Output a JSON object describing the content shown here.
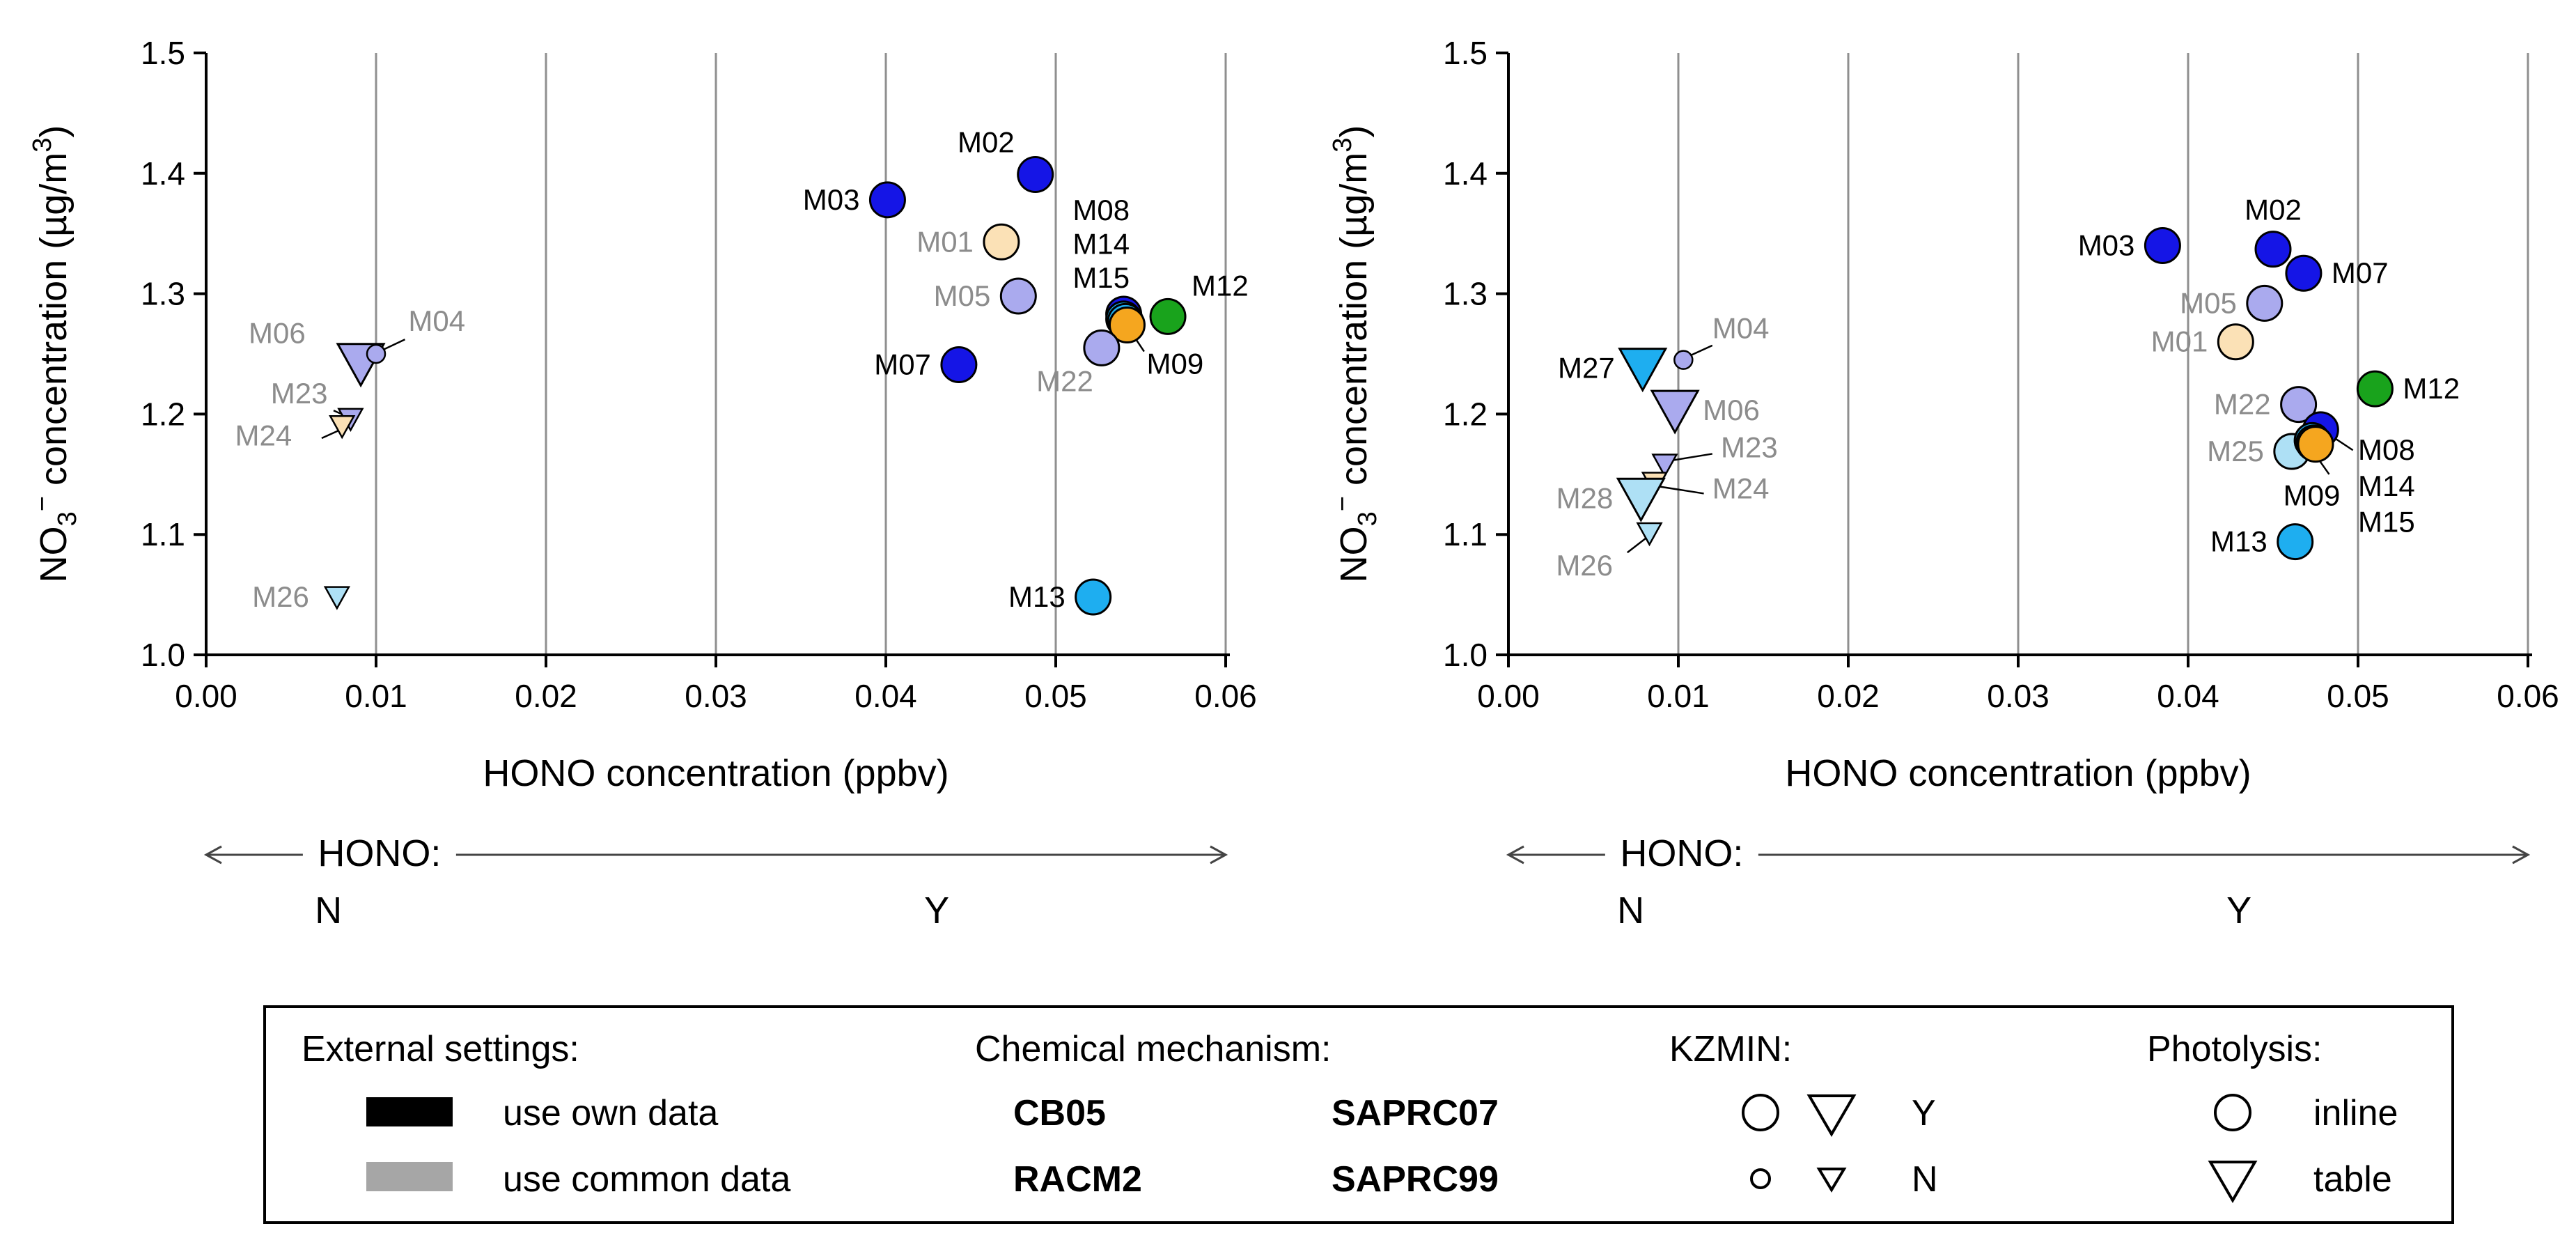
{
  "colors": {
    "CB05": "#f5a61f",
    "SAPRC07": "#1515e6",
    "RACM2": "#19a31c",
    "SAPRC99": "#1eaef0",
    "own": "#000000",
    "common": "#a6a6a6",
    "light_SAPRC07": "#aaaaee",
    "light_CB05": "#fbe1b6",
    "light_SAPRC99": "#aee0f5",
    "common_label": "#8c8c8c"
  },
  "chart_data": [
    {
      "type": "scatter",
      "name": "left-panel",
      "title": "",
      "xlabel": "HONO concentration (ppbv)",
      "ylabel_parts": [
        "NO",
        "3",
        "−",
        " concentration (µg/m",
        "3",
        ")"
      ],
      "xlim": [
        0.0,
        0.06
      ],
      "ylim": [
        1.0,
        1.5
      ],
      "xticks": [
        "0.00",
        "0.01",
        "0.02",
        "0.03",
        "0.04",
        "0.05",
        "0.06"
      ],
      "yticks": [
        "1.0",
        "1.1",
        "1.2",
        "1.3",
        "1.4",
        "1.5"
      ],
      "grid": "vertical",
      "hono_axis": {
        "label": "HONO:",
        "n": "N",
        "y": "Y"
      },
      "points": [
        {
          "label": "M03",
          "x": 0.0401,
          "y": 1.378,
          "mech": "SAPRC07",
          "data": "own",
          "kz": "Y",
          "photo": "inline",
          "lpos": "left"
        },
        {
          "label": "M02",
          "x": 0.0488,
          "y": 1.399,
          "mech": "SAPRC07",
          "data": "own",
          "kz": "Y",
          "photo": "inline",
          "lpos": "upleft"
        },
        {
          "label": "M01",
          "x": 0.0468,
          "y": 1.343,
          "mech": "CB05",
          "data": "common",
          "kz": "Y",
          "photo": "inline",
          "lpos": "left"
        },
        {
          "label": "M05",
          "x": 0.0478,
          "y": 1.298,
          "mech": "SAPRC07",
          "data": "common",
          "kz": "Y",
          "photo": "inline",
          "lpos": "left"
        },
        {
          "label": "M07",
          "x": 0.0443,
          "y": 1.241,
          "mech": "SAPRC07",
          "data": "own",
          "kz": "Y",
          "photo": "inline",
          "lpos": "left"
        },
        {
          "label": "M08",
          "x": 0.054,
          "y": 1.283,
          "mech": "SAPRC07",
          "data": "own",
          "kz": "Y",
          "photo": "inline",
          "lpos": "none"
        },
        {
          "label": "M14",
          "x": 0.054,
          "y": 1.279,
          "mech": "SAPRC99",
          "data": "own",
          "kz": "Y",
          "photo": "inline",
          "lpos": "none"
        },
        {
          "label": "M15",
          "x": 0.0541,
          "y": 1.277,
          "mech": "SAPRC99",
          "data": "own",
          "kz": "Y",
          "photo": "inline",
          "lpos": "none"
        },
        {
          "label": "M09",
          "x": 0.0542,
          "y": 1.274,
          "mech": "CB05",
          "data": "own",
          "kz": "Y",
          "photo": "inline",
          "lpos": "lowright"
        },
        {
          "label": "M12",
          "x": 0.0566,
          "y": 1.281,
          "mech": "RACM2",
          "data": "own",
          "kz": "Y",
          "photo": "inline",
          "lpos": "upright"
        },
        {
          "label": "M22",
          "x": 0.0527,
          "y": 1.255,
          "mech": "SAPRC07",
          "data": "common",
          "kz": "Y",
          "photo": "inline",
          "lpos": "lowleft"
        },
        {
          "label": "M13",
          "x": 0.0522,
          "y": 1.048,
          "mech": "SAPRC99",
          "data": "own",
          "kz": "Y",
          "photo": "inline",
          "lpos": "left"
        },
        {
          "label": "M06",
          "x": 0.0091,
          "y": 1.242,
          "mech": "SAPRC07",
          "data": "common",
          "kz": "Y",
          "photo": "table",
          "lpos": "none"
        },
        {
          "label": "M04",
          "x": 0.01,
          "y": 1.25,
          "mech": "SAPRC07",
          "data": "common",
          "kz": "N",
          "photo": "inline",
          "lpos": "none"
        },
        {
          "label": "M23",
          "x": 0.0085,
          "y": 1.196,
          "mech": "SAPRC07",
          "data": "common",
          "kz": "N",
          "photo": "table",
          "lpos": "none"
        },
        {
          "label": "M24",
          "x": 0.008,
          "y": 1.19,
          "mech": "CB05",
          "data": "common",
          "kz": "N",
          "photo": "table",
          "lpos": "none"
        },
        {
          "label": "M26",
          "x": 0.0077,
          "y": 1.048,
          "mech": "SAPRC99",
          "data": "common",
          "kz": "N",
          "photo": "table",
          "lpos": "left"
        }
      ],
      "annotations": [
        {
          "text": "M08",
          "x": 0.051,
          "y": 1.361,
          "color": "own"
        },
        {
          "text": "M14",
          "x": 0.051,
          "y": 1.333,
          "color": "own"
        },
        {
          "text": "M15",
          "x": 0.051,
          "y": 1.305,
          "color": "own"
        },
        {
          "text": "M06",
          "x": 0.0025,
          "y": 1.259,
          "color": "common"
        },
        {
          "text": "M04",
          "x": 0.0119,
          "y": 1.269,
          "color": "common"
        },
        {
          "text": "M23",
          "x": 0.0038,
          "y": 1.209,
          "color": "common"
        },
        {
          "text": "M24",
          "x": 0.0017,
          "y": 1.174,
          "color": "common"
        }
      ],
      "leaders": [
        [
          0.0098,
          1.252,
          0.0077,
          1.258
        ],
        [
          0.0102,
          1.252,
          0.0117,
          1.262
        ],
        [
          0.0083,
          1.198,
          0.0075,
          1.203
        ],
        [
          0.0079,
          1.187,
          0.0068,
          1.18
        ],
        [
          0.0543,
          1.271,
          0.0552,
          1.252
        ]
      ]
    },
    {
      "type": "scatter",
      "name": "right-panel",
      "title": "",
      "xlabel": "HONO concentration (ppbv)",
      "ylabel_parts": [
        "NO",
        "3",
        "−",
        " concentration (µg/m",
        "3",
        ")"
      ],
      "xlim": [
        0.0,
        0.06
      ],
      "ylim": [
        1.0,
        1.5
      ],
      "xticks": [
        "0.00",
        "0.01",
        "0.02",
        "0.03",
        "0.04",
        "0.05",
        "0.06"
      ],
      "yticks": [
        "1.0",
        "1.1",
        "1.2",
        "1.3",
        "1.4",
        "1.5"
      ],
      "grid": "vertical",
      "hono_axis": {
        "label": "HONO:",
        "n": "N",
        "y": "Y"
      },
      "points": [
        {
          "label": "M03",
          "x": 0.0385,
          "y": 1.34,
          "mech": "SAPRC07",
          "data": "own",
          "kz": "Y",
          "photo": "inline",
          "lpos": "left"
        },
        {
          "label": "M02",
          "x": 0.045,
          "y": 1.337,
          "mech": "SAPRC07",
          "data": "own",
          "kz": "Y",
          "photo": "inline",
          "lpos": "up"
        },
        {
          "label": "M07",
          "x": 0.0468,
          "y": 1.317,
          "mech": "SAPRC07",
          "data": "own",
          "kz": "Y",
          "photo": "inline",
          "lpos": "right"
        },
        {
          "label": "M05",
          "x": 0.0445,
          "y": 1.292,
          "mech": "SAPRC07",
          "data": "common",
          "kz": "Y",
          "photo": "inline",
          "lpos": "left"
        },
        {
          "label": "M01",
          "x": 0.0428,
          "y": 1.26,
          "mech": "CB05",
          "data": "common",
          "kz": "Y",
          "photo": "inline",
          "lpos": "left"
        },
        {
          "label": "M12",
          "x": 0.051,
          "y": 1.221,
          "mech": "RACM2",
          "data": "own",
          "kz": "Y",
          "photo": "inline",
          "lpos": "right"
        },
        {
          "label": "M22",
          "x": 0.0465,
          "y": 1.208,
          "mech": "SAPRC07",
          "data": "common",
          "kz": "Y",
          "photo": "inline",
          "lpos": "left"
        },
        {
          "label": "M08",
          "x": 0.0478,
          "y": 1.187,
          "mech": "SAPRC07",
          "data": "own",
          "kz": "Y",
          "photo": "inline",
          "lpos": "none"
        },
        {
          "label": "M25",
          "x": 0.0461,
          "y": 1.169,
          "mech": "SAPRC99",
          "data": "common",
          "kz": "Y",
          "photo": "inline",
          "lpos": "left"
        },
        {
          "label": "M14",
          "x": 0.0473,
          "y": 1.178,
          "mech": "SAPRC99",
          "data": "own",
          "kz": "Y",
          "photo": "inline",
          "lpos": "none"
        },
        {
          "label": "M15",
          "x": 0.0474,
          "y": 1.176,
          "mech": "SAPRC99",
          "data": "own",
          "kz": "Y",
          "photo": "inline",
          "lpos": "none"
        },
        {
          "label": "M09",
          "x": 0.0475,
          "y": 1.175,
          "mech": "CB05",
          "data": "own",
          "kz": "Y",
          "photo": "inline",
          "lpos": "none"
        },
        {
          "label": "M13",
          "x": 0.0463,
          "y": 1.094,
          "mech": "SAPRC99",
          "data": "own",
          "kz": "Y",
          "photo": "inline",
          "lpos": "left"
        },
        {
          "label": "M27",
          "x": 0.0079,
          "y": 1.238,
          "mech": "SAPRC99",
          "data": "own",
          "kz": "Y",
          "photo": "table",
          "lpos": "left"
        },
        {
          "label": "M04",
          "x": 0.0103,
          "y": 1.245,
          "mech": "SAPRC07",
          "data": "common",
          "kz": "N",
          "photo": "inline",
          "lpos": "none"
        },
        {
          "label": "M06",
          "x": 0.0098,
          "y": 1.203,
          "mech": "SAPRC07",
          "data": "common",
          "kz": "Y",
          "photo": "table",
          "lpos": "right"
        },
        {
          "label": "M23",
          "x": 0.0092,
          "y": 1.158,
          "mech": "SAPRC07",
          "data": "common",
          "kz": "N",
          "photo": "table",
          "lpos": "none"
        },
        {
          "label": "M24",
          "x": 0.0086,
          "y": 1.143,
          "mech": "CB05",
          "data": "common",
          "kz": "N",
          "photo": "table",
          "lpos": "none"
        },
        {
          "label": "M28",
          "x": 0.0078,
          "y": 1.13,
          "mech": "SAPRC99",
          "data": "common",
          "kz": "Y",
          "photo": "table",
          "lpos": "left"
        },
        {
          "label": "M26",
          "x": 0.0083,
          "y": 1.101,
          "mech": "SAPRC99",
          "data": "common",
          "kz": "N",
          "photo": "table",
          "lpos": "none"
        }
      ],
      "annotations": [
        {
          "text": "M04",
          "x": 0.012,
          "y": 1.263,
          "color": "common"
        },
        {
          "text": "M23",
          "x": 0.0125,
          "y": 1.164,
          "color": "common"
        },
        {
          "text": "M24",
          "x": 0.012,
          "y": 1.13,
          "color": "common"
        },
        {
          "text": "M26",
          "x": 0.0028,
          "y": 1.066,
          "color": "common"
        },
        {
          "text": "M08",
          "x": 0.05,
          "y": 1.162,
          "color": "own"
        },
        {
          "text": "M14",
          "x": 0.05,
          "y": 1.132,
          "color": "own"
        },
        {
          "text": "M15",
          "x": 0.05,
          "y": 1.102,
          "color": "own"
        },
        {
          "text": "M09",
          "x": 0.0456,
          "y": 1.124,
          "color": "own"
        }
      ],
      "leaders": [
        [
          0.0106,
          1.248,
          0.012,
          1.257
        ],
        [
          0.0094,
          1.161,
          0.012,
          1.167
        ],
        [
          0.0088,
          1.14,
          0.0115,
          1.134
        ],
        [
          0.0081,
          1.097,
          0.007,
          1.085
        ],
        [
          0.0482,
          1.184,
          0.0497,
          1.17
        ],
        [
          0.0473,
          1.17,
          0.0483,
          1.15
        ]
      ]
    }
  ],
  "legend": {
    "external_title": "External settings:",
    "own_label": "use own data",
    "common_label": "use common data",
    "mech_title": "Chemical mechanism:",
    "cb05": "CB05",
    "saprc07": "SAPRC07",
    "racm2": "RACM2",
    "saprc99": "SAPRC99",
    "kzmin_title": "KZMIN:",
    "kz_y": "Y",
    "kz_n": "N",
    "photolysis_title": "Photolysis:",
    "inline": "inline",
    "table": "table"
  }
}
